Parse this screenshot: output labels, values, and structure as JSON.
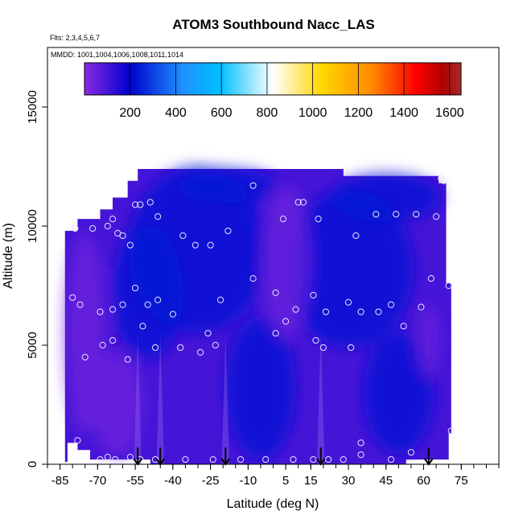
{
  "chart_data": {
    "type": "heatmap",
    "title": "ATOM3 Southbound Nacc_LAS",
    "note_flights": "Flts: 2,3,4,5,6,7",
    "note_dates": "MMDD: 1001,1004,1006,1008,1011,1014",
    "xlabel": "Latitude (deg N)",
    "ylabel": "Altitude (m)",
    "xlim": [
      -90,
      90
    ],
    "ylim": [
      0,
      17500
    ],
    "x_ticks": [
      -85,
      -70,
      -55,
      -40,
      -25,
      -10,
      5,
      15,
      30,
      45,
      60,
      75
    ],
    "y_ticks": [
      0,
      5000,
      10000,
      15000
    ],
    "colorbar": {
      "range": [
        0,
        1650
      ],
      "ticks": [
        200,
        400,
        600,
        800,
        1000,
        1200,
        1400,
        1600
      ],
      "colors": [
        "#8B2BE2",
        "#0000CD",
        "#1E90FF",
        "#00BFFF",
        "#FFFFFF",
        "#FFD700",
        "#FF8C00",
        "#FF0000",
        "#8B0000",
        "#A52A2A"
      ]
    },
    "field_extent": {
      "lat_min": -84,
      "lat_max": 71,
      "alt_min": 0,
      "alt_max": 12400
    },
    "field_description_values": {
      "background_value": 180,
      "low_regions_value": 40,
      "high_regions_value": 230
    },
    "profile_locations_lat": [
      -54,
      -45,
      -19,
      19,
      62
    ],
    "sample_points": [
      {
        "lat": -79,
        "alt": 9900
      },
      {
        "lat": -72,
        "alt": 9900
      },
      {
        "lat": -66,
        "alt": 10000
      },
      {
        "lat": -64,
        "alt": 10300
      },
      {
        "lat": -62,
        "alt": 9700
      },
      {
        "lat": -60,
        "alt": 9600
      },
      {
        "lat": -57,
        "alt": 9200
      },
      {
        "lat": -55,
        "alt": 10900
      },
      {
        "lat": -53,
        "alt": 10900
      },
      {
        "lat": -49,
        "alt": 11000
      },
      {
        "lat": -46,
        "alt": 10400
      },
      {
        "lat": -36,
        "alt": 9600
      },
      {
        "lat": -31,
        "alt": 9200
      },
      {
        "lat": -25,
        "alt": 9200
      },
      {
        "lat": -18,
        "alt": 9800
      },
      {
        "lat": -8,
        "alt": 11700
      },
      {
        "lat": 4,
        "alt": 10300
      },
      {
        "lat": 10,
        "alt": 11000
      },
      {
        "lat": 12,
        "alt": 11000
      },
      {
        "lat": 18,
        "alt": 10300
      },
      {
        "lat": 33,
        "alt": 9600
      },
      {
        "lat": 41,
        "alt": 10500
      },
      {
        "lat": 49,
        "alt": 10500
      },
      {
        "lat": 57,
        "alt": 10500
      },
      {
        "lat": 65,
        "alt": 10400
      },
      {
        "lat": 67,
        "alt": 12000
      },
      {
        "lat": 68,
        "alt": 11900
      },
      {
        "lat": 70,
        "alt": 7500
      },
      {
        "lat": -80,
        "alt": 7000
      },
      {
        "lat": -77,
        "alt": 6700
      },
      {
        "lat": -69,
        "alt": 6400
      },
      {
        "lat": -64,
        "alt": 6500
      },
      {
        "lat": -60,
        "alt": 6700
      },
      {
        "lat": -55,
        "alt": 7400
      },
      {
        "lat": -50,
        "alt": 6700
      },
      {
        "lat": -46,
        "alt": 6900
      },
      {
        "lat": -40,
        "alt": 6300
      },
      {
        "lat": -26,
        "alt": 5500
      },
      {
        "lat": -21,
        "alt": 6900
      },
      {
        "lat": -8,
        "alt": 7800
      },
      {
        "lat": 1,
        "alt": 7200
      },
      {
        "lat": 5,
        "alt": 6000
      },
      {
        "lat": 9,
        "alt": 6500
      },
      {
        "lat": 16,
        "alt": 7100
      },
      {
        "lat": 21,
        "alt": 6400
      },
      {
        "lat": 30,
        "alt": 6800
      },
      {
        "lat": 35,
        "alt": 6400
      },
      {
        "lat": 42,
        "alt": 6400
      },
      {
        "lat": 47,
        "alt": 6700
      },
      {
        "lat": 59,
        "alt": 6600
      },
      {
        "lat": 63,
        "alt": 7800
      },
      {
        "lat": -75,
        "alt": 4500
      },
      {
        "lat": -68,
        "alt": 5000
      },
      {
        "lat": -64,
        "alt": 5200
      },
      {
        "lat": -58,
        "alt": 4400
      },
      {
        "lat": -52,
        "alt": 5800
      },
      {
        "lat": -47,
        "alt": 4900
      },
      {
        "lat": -37,
        "alt": 4900
      },
      {
        "lat": -29,
        "alt": 4700
      },
      {
        "lat": -23,
        "alt": 5000
      },
      {
        "lat": 1,
        "alt": 5500
      },
      {
        "lat": 17,
        "alt": 5200
      },
      {
        "lat": 20,
        "alt": 4900
      },
      {
        "lat": 31,
        "alt": 4900
      },
      {
        "lat": 52,
        "alt": 5800
      },
      {
        "lat": -78,
        "alt": 1000
      },
      {
        "lat": -69,
        "alt": 200
      },
      {
        "lat": -66,
        "alt": 300
      },
      {
        "lat": -63,
        "alt": 200
      },
      {
        "lat": -57,
        "alt": 300
      },
      {
        "lat": -53,
        "alt": 200
      },
      {
        "lat": -47,
        "alt": 200
      },
      {
        "lat": -35,
        "alt": 200
      },
      {
        "lat": -24,
        "alt": 200
      },
      {
        "lat": -13,
        "alt": 200
      },
      {
        "lat": -3,
        "alt": 200
      },
      {
        "lat": 8,
        "alt": 200
      },
      {
        "lat": 16,
        "alt": 200
      },
      {
        "lat": 22,
        "alt": 200
      },
      {
        "lat": 28,
        "alt": 200
      },
      {
        "lat": 35,
        "alt": 400
      },
      {
        "lat": 35,
        "alt": 900
      },
      {
        "lat": 47,
        "alt": 200
      },
      {
        "lat": 55,
        "alt": 500
      },
      {
        "lat": 71,
        "alt": 1400
      }
    ]
  }
}
